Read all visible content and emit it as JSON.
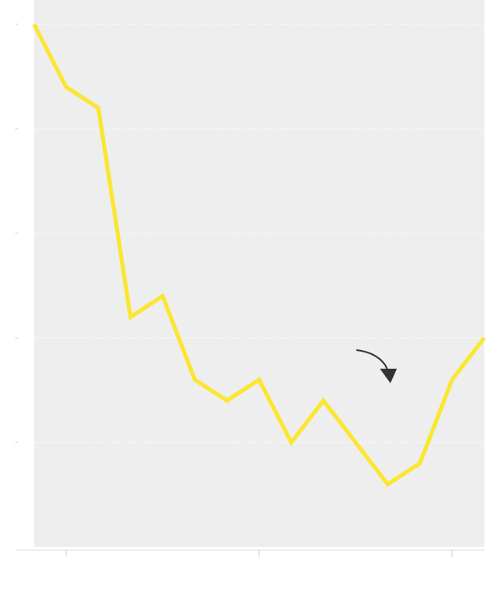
{
  "chart_data": {
    "type": "line",
    "title": "",
    "xlabel": "",
    "ylabel": "",
    "x": [
      0,
      1,
      2,
      3,
      4,
      5,
      6,
      7,
      8,
      9,
      10,
      11,
      12,
      13,
      14
    ],
    "series": [
      {
        "values": [
          25,
          22,
          21,
          11,
          12,
          8,
          7,
          8,
          5,
          7,
          5,
          3,
          4,
          8,
          10
        ]
      }
    ],
    "ylim": [
      0,
      25
    ],
    "y_gridlines": [
      5,
      10,
      15,
      20,
      25
    ],
    "x_ticks": [
      1,
      7,
      13
    ],
    "x_tick_labels": [
      "",
      "",
      ""
    ],
    "y_tick_labels": [
      "",
      "",
      "",
      "",
      ""
    ],
    "grid": true,
    "colors": {
      "line": "#fbe631",
      "plot_background": "#eeeeee",
      "gridline": "#ffffff",
      "axis": "#dddddd",
      "annotation_arrow": "#333333"
    },
    "annotations": [
      {
        "kind": "curved-arrow",
        "text": "",
        "points_to_x": 11
      }
    ]
  }
}
